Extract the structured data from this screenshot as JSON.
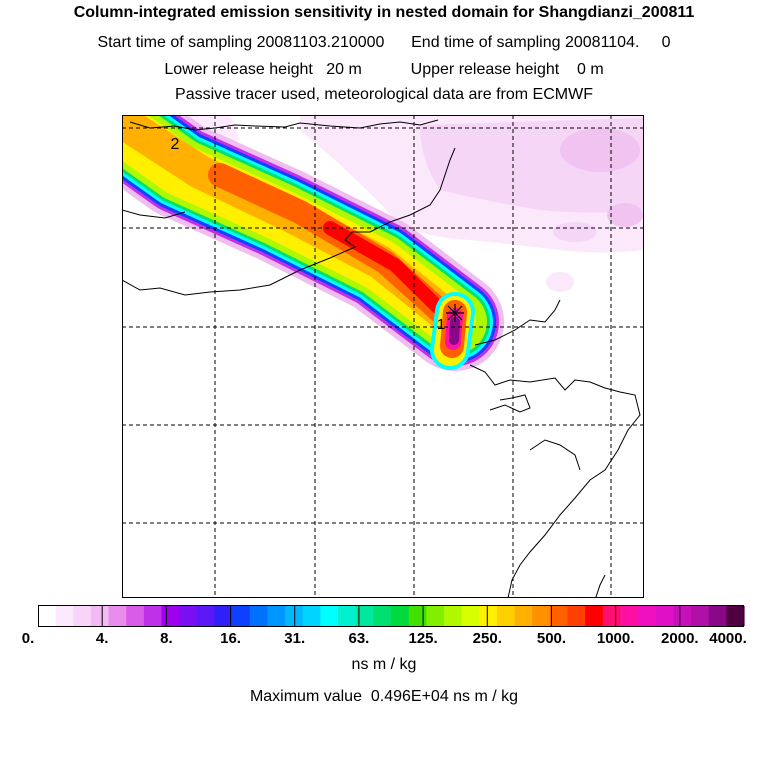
{
  "header": {
    "title": "Column-integrated emission sensitivity in nested domain for Shangdianzi_200811",
    "sampling_times": "Start time of sampling 20081103.210000      End time of sampling 20081104.     0",
    "release_heights": "Lower release height   20 m           Upper release height    0 m",
    "tracer_info": "Passive tracer used, meteorological data are from ECMWF"
  },
  "map": {
    "markers": [
      {
        "label": "1",
        "description": "receptor release location"
      },
      {
        "label": "2",
        "description": "trajectory marker"
      }
    ]
  },
  "colorbar": {
    "tick_labels": [
      "0.",
      "4.",
      "8.",
      "16.",
      "31.",
      "63.",
      "125.",
      "250.",
      "500.",
      "1000.",
      "2000.",
      "4000."
    ],
    "colors": [
      "#ffffff",
      "#fde9fd",
      "#f9d4f9",
      "#f3b9f4",
      "#e98ced",
      "#d85ce8",
      "#c030e8",
      "#a000f0",
      "#7a10f2",
      "#5a18f6",
      "#3020f8",
      "#1040ff",
      "#0070ff",
      "#0096ff",
      "#00b8ff",
      "#00d4ff",
      "#00ffff",
      "#00f0d0",
      "#00e8a0",
      "#00e070",
      "#00d840",
      "#40e000",
      "#80f000",
      "#b0f800",
      "#d8ff00",
      "#fff000",
      "#ffd000",
      "#ffb000",
      "#ff9000",
      "#ff6000",
      "#ff4000",
      "#ff0000",
      "#ff1070",
      "#ff10a0",
      "#f010c0",
      "#e010c8",
      "#c810b8",
      "#b010a8",
      "#880888",
      "#500040"
    ],
    "units": "ns m / kg",
    "max_value_text": "Maximum value  0.496E+04 ns m / kg"
  }
}
